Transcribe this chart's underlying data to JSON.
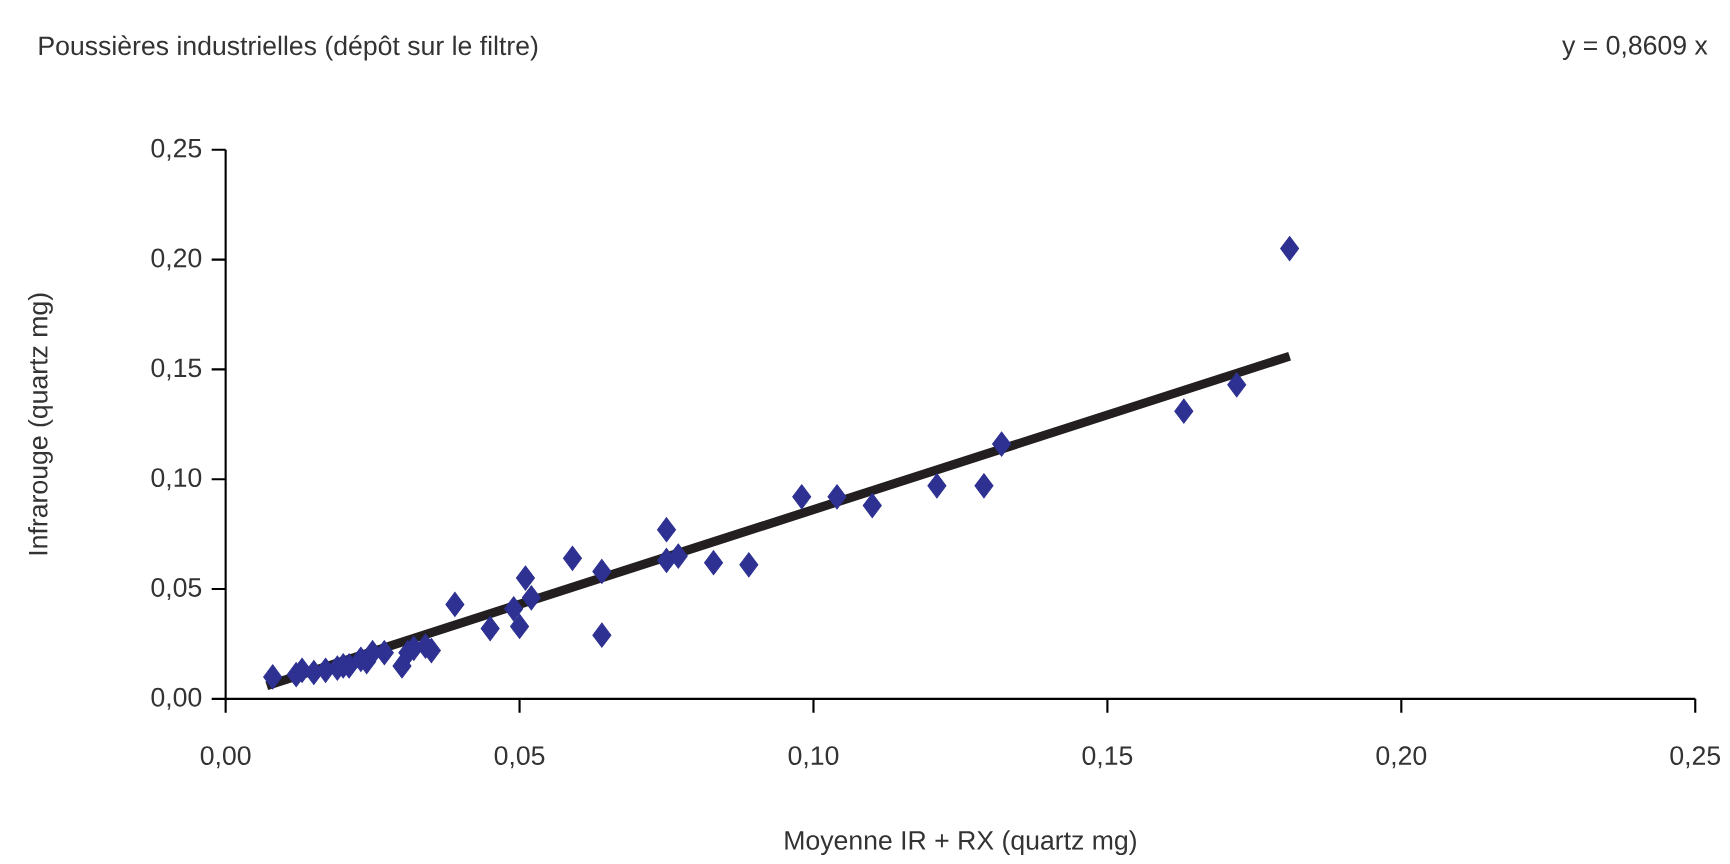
{
  "chart_data": {
    "type": "scatter",
    "title": "Poussières industrielles (dépôt sur le filtre)",
    "xlabel": "Moyenne IR + RX (quartz mg)",
    "ylabel": "Infrarouge (quartz mg)",
    "annotations": [
      "y = 0,8609 x"
    ],
    "xlim": [
      0,
      0.25
    ],
    "ylim": [
      0,
      0.25
    ],
    "xticks": [
      {
        "value": 0,
        "label": "0,00"
      },
      {
        "value": 0.05,
        "label": "0,05"
      },
      {
        "value": 0.1,
        "label": "0,10"
      },
      {
        "value": 0.15,
        "label": "0,15"
      },
      {
        "value": 0.2,
        "label": "0,20"
      },
      {
        "value": 0.25,
        "label": "0,25"
      }
    ],
    "yticks": [
      {
        "value": 0,
        "label": "0,00"
      },
      {
        "value": 0.05,
        "label": "0,05"
      },
      {
        "value": 0.1,
        "label": "0,10"
      },
      {
        "value": 0.15,
        "label": "0,15"
      },
      {
        "value": 0.2,
        "label": "0,20"
      },
      {
        "value": 0.25,
        "label": "0,25"
      }
    ],
    "grid": false,
    "marker": "diamond",
    "series": [
      {
        "color": "#2e3192",
        "x": [
          0.008,
          0.012,
          0.013,
          0.015,
          0.017,
          0.019,
          0.02,
          0.021,
          0.023,
          0.024,
          0.025,
          0.027,
          0.03,
          0.031,
          0.032,
          0.034,
          0.035,
          0.039,
          0.045,
          0.049,
          0.05,
          0.051,
          0.052,
          0.059,
          0.064,
          0.064,
          0.075,
          0.075,
          0.077,
          0.083,
          0.089,
          0.098,
          0.104,
          0.11,
          0.121,
          0.129,
          0.132,
          0.163,
          0.172,
          0.181
        ],
        "values": [
          0.01,
          0.011,
          0.013,
          0.012,
          0.013,
          0.014,
          0.015,
          0.015,
          0.018,
          0.017,
          0.021,
          0.021,
          0.015,
          0.021,
          0.023,
          0.024,
          0.022,
          0.043,
          0.032,
          0.041,
          0.033,
          0.055,
          0.046,
          0.064,
          0.058,
          0.029,
          0.077,
          0.063,
          0.065,
          0.062,
          0.061,
          0.092,
          0.092,
          0.088,
          0.097,
          0.097,
          0.116,
          0.131,
          0.143,
          0.205
        ]
      },
      {
        "type": "line",
        "marker": "none",
        "color": "#231f20",
        "x": [
          0.007,
          0.181
        ],
        "values": [
          0.006,
          0.156
        ]
      }
    ]
  }
}
